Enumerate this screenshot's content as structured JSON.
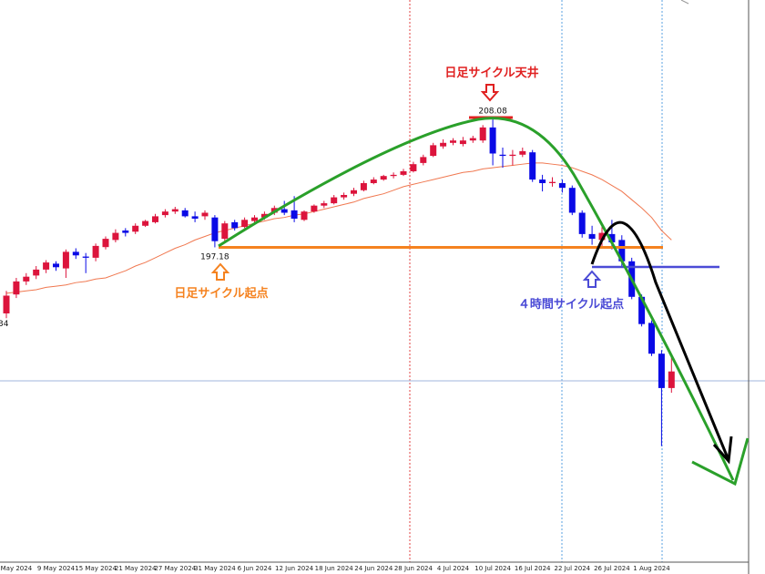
{
  "chart_data": {
    "type": "candlestick",
    "categories": [
      null,
      "May 2024",
      null,
      null,
      null,
      "9 May 2024",
      null,
      null,
      null,
      "15 May 2024",
      null,
      null,
      null,
      "21 May 2024",
      null,
      null,
      null,
      "27 May 2024",
      null,
      null,
      null,
      "31 May 2024",
      null,
      null,
      null,
      "6 Jun 2024",
      null,
      null,
      null,
      "12 Jun 2024",
      null,
      null,
      null,
      "18 Jun 2024",
      null,
      null,
      null,
      "24 Jun 2024",
      null,
      null,
      null,
      "28 Jun 2024",
      null,
      null,
      null,
      "4 Jul 2024",
      null,
      null,
      null,
      "10 Jul 2024",
      null,
      null,
      null,
      "16 Jul 2024",
      null,
      null,
      null,
      "22 Jul 2024",
      null,
      null,
      null,
      "26 Jul 2024",
      null,
      null,
      null,
      "1 Aug 2024",
      null,
      null
    ],
    "open": [
      191.6,
      193.2,
      194.3,
      194.8,
      195.3,
      195.8,
      195.4,
      196.8,
      196.4,
      196.3,
      197.2,
      197.8,
      198.6,
      198.5,
      199.0,
      199.3,
      199.9,
      200.2,
      200.3,
      199.8,
      199.8,
      199.7,
      197.9,
      199.3,
      198.9,
      199.4,
      199.7,
      200.1,
      200.4,
      200.3,
      199.5,
      200.2,
      200.7,
      200.9,
      201.4,
      201.7,
      202.0,
      202.6,
      202.9,
      203.2,
      203.3,
      203.6,
      204.3,
      204.9,
      205.7,
      206.0,
      205.9,
      206.2,
      206.2,
      207.3,
      205.0,
      204.9,
      205.0,
      205.2,
      202.9,
      202.6,
      202.6,
      202.2,
      200.1,
      198.3,
      197.8,
      198.3,
      197.8,
      196.0,
      193.0,
      190.8,
      188.2,
      185.3
    ],
    "close": [
      193.1,
      194.3,
      194.7,
      195.3,
      195.9,
      195.5,
      196.8,
      196.5,
      196.3,
      197.3,
      197.9,
      198.4,
      198.4,
      199.0,
      199.4,
      199.8,
      200.2,
      200.4,
      199.8,
      199.6,
      200.1,
      197.7,
      199.2,
      198.8,
      199.5,
      199.7,
      200.0,
      200.5,
      200.1,
      199.6,
      200.2,
      200.7,
      200.9,
      201.4,
      201.6,
      202.0,
      202.6,
      202.9,
      203.2,
      203.3,
      203.6,
      204.2,
      204.8,
      205.8,
      206.0,
      206.2,
      206.2,
      206.4,
      207.3,
      205.1,
      204.9,
      205.0,
      205.3,
      202.9,
      202.6,
      202.7,
      202.2,
      200.1,
      198.3,
      197.9,
      198.4,
      197.6,
      196.0,
      193.0,
      190.7,
      188.2,
      185.3,
      186.7
    ],
    "high": [
      193.5,
      194.6,
      195.0,
      195.6,
      196.1,
      196.0,
      197.0,
      197.1,
      196.7,
      197.5,
      198.1,
      198.7,
      198.8,
      199.2,
      199.5,
      200.0,
      200.4,
      200.6,
      200.5,
      200.2,
      200.3,
      199.9,
      199.4,
      199.5,
      199.7,
      199.9,
      200.2,
      200.7,
      201.1,
      201.5,
      200.3,
      200.8,
      201.1,
      201.6,
      201.8,
      202.2,
      202.8,
      203.1,
      203.3,
      203.5,
      203.8,
      204.4,
      205.0,
      206.0,
      206.3,
      206.4,
      206.5,
      206.6,
      207.5,
      208.08,
      205.6,
      205.4,
      205.6,
      205.4,
      203.3,
      203.1,
      202.9,
      202.4,
      200.3,
      199.0,
      198.9,
      199.5,
      198.2,
      196.3,
      193.2,
      191.0,
      188.5,
      188.0
    ],
    "low": [
      191.2,
      192.9,
      194.0,
      194.5,
      195.0,
      195.2,
      194.6,
      196.2,
      195.0,
      196.0,
      197.0,
      197.6,
      198.1,
      198.3,
      198.9,
      199.2,
      199.7,
      200.0,
      199.7,
      199.3,
      199.5,
      197.18,
      197.7,
      198.6,
      198.8,
      199.2,
      199.5,
      199.9,
      199.9,
      199.3,
      199.4,
      200.1,
      200.5,
      200.8,
      201.2,
      201.5,
      201.9,
      202.5,
      202.8,
      203.0,
      203.2,
      203.5,
      204.1,
      204.8,
      205.5,
      205.8,
      205.7,
      206.0,
      206.0,
      204.1,
      203.9,
      204.1,
      204.8,
      202.7,
      201.9,
      202.3,
      201.8,
      199.9,
      198.0,
      197.4,
      197.1,
      197.0,
      195.6,
      192.8,
      190.5,
      188.0,
      180.4,
      184.9
    ],
    "up_color": "#dc143c",
    "down_color": "#0a0ae6",
    "moving_average": {
      "color": "#f07850",
      "values": [
        193.3,
        193.4,
        193.5,
        193.6,
        193.8,
        193.9,
        194.0,
        194.2,
        194.3,
        194.5,
        194.6,
        194.9,
        195.2,
        195.6,
        195.9,
        196.3,
        196.7,
        197.1,
        197.4,
        197.8,
        198.1,
        198.4,
        198.6,
        198.8,
        199.0,
        199.2,
        199.4,
        199.6,
        199.7,
        199.9,
        200.0,
        200.2,
        200.4,
        200.6,
        200.8,
        201.0,
        201.3,
        201.5,
        201.7,
        202.0,
        202.3,
        202.5,
        202.7,
        202.9,
        203.1,
        203.3,
        203.5,
        203.6,
        203.8,
        203.9,
        204.0,
        204.1,
        204.2,
        204.3,
        204.3,
        204.2,
        204.1,
        203.9,
        203.6,
        203.3,
        202.9,
        202.4,
        201.9,
        201.2,
        200.5,
        199.7,
        198.6,
        197.8
      ]
    },
    "ylim": [
      170.6,
      218.06
    ],
    "price_labels": [
      208.08,
      197.18
    ],
    "annotations": [
      {
        "text": "日足サイクル天井",
        "color": "#e02020"
      },
      {
        "text": "日足サイクル起点",
        "color": "#f5821f"
      },
      {
        "text": "４時間サイクル起点",
        "color": "#4b4bd6"
      },
      {
        "text": "34",
        "color": "#000000"
      }
    ]
  }
}
